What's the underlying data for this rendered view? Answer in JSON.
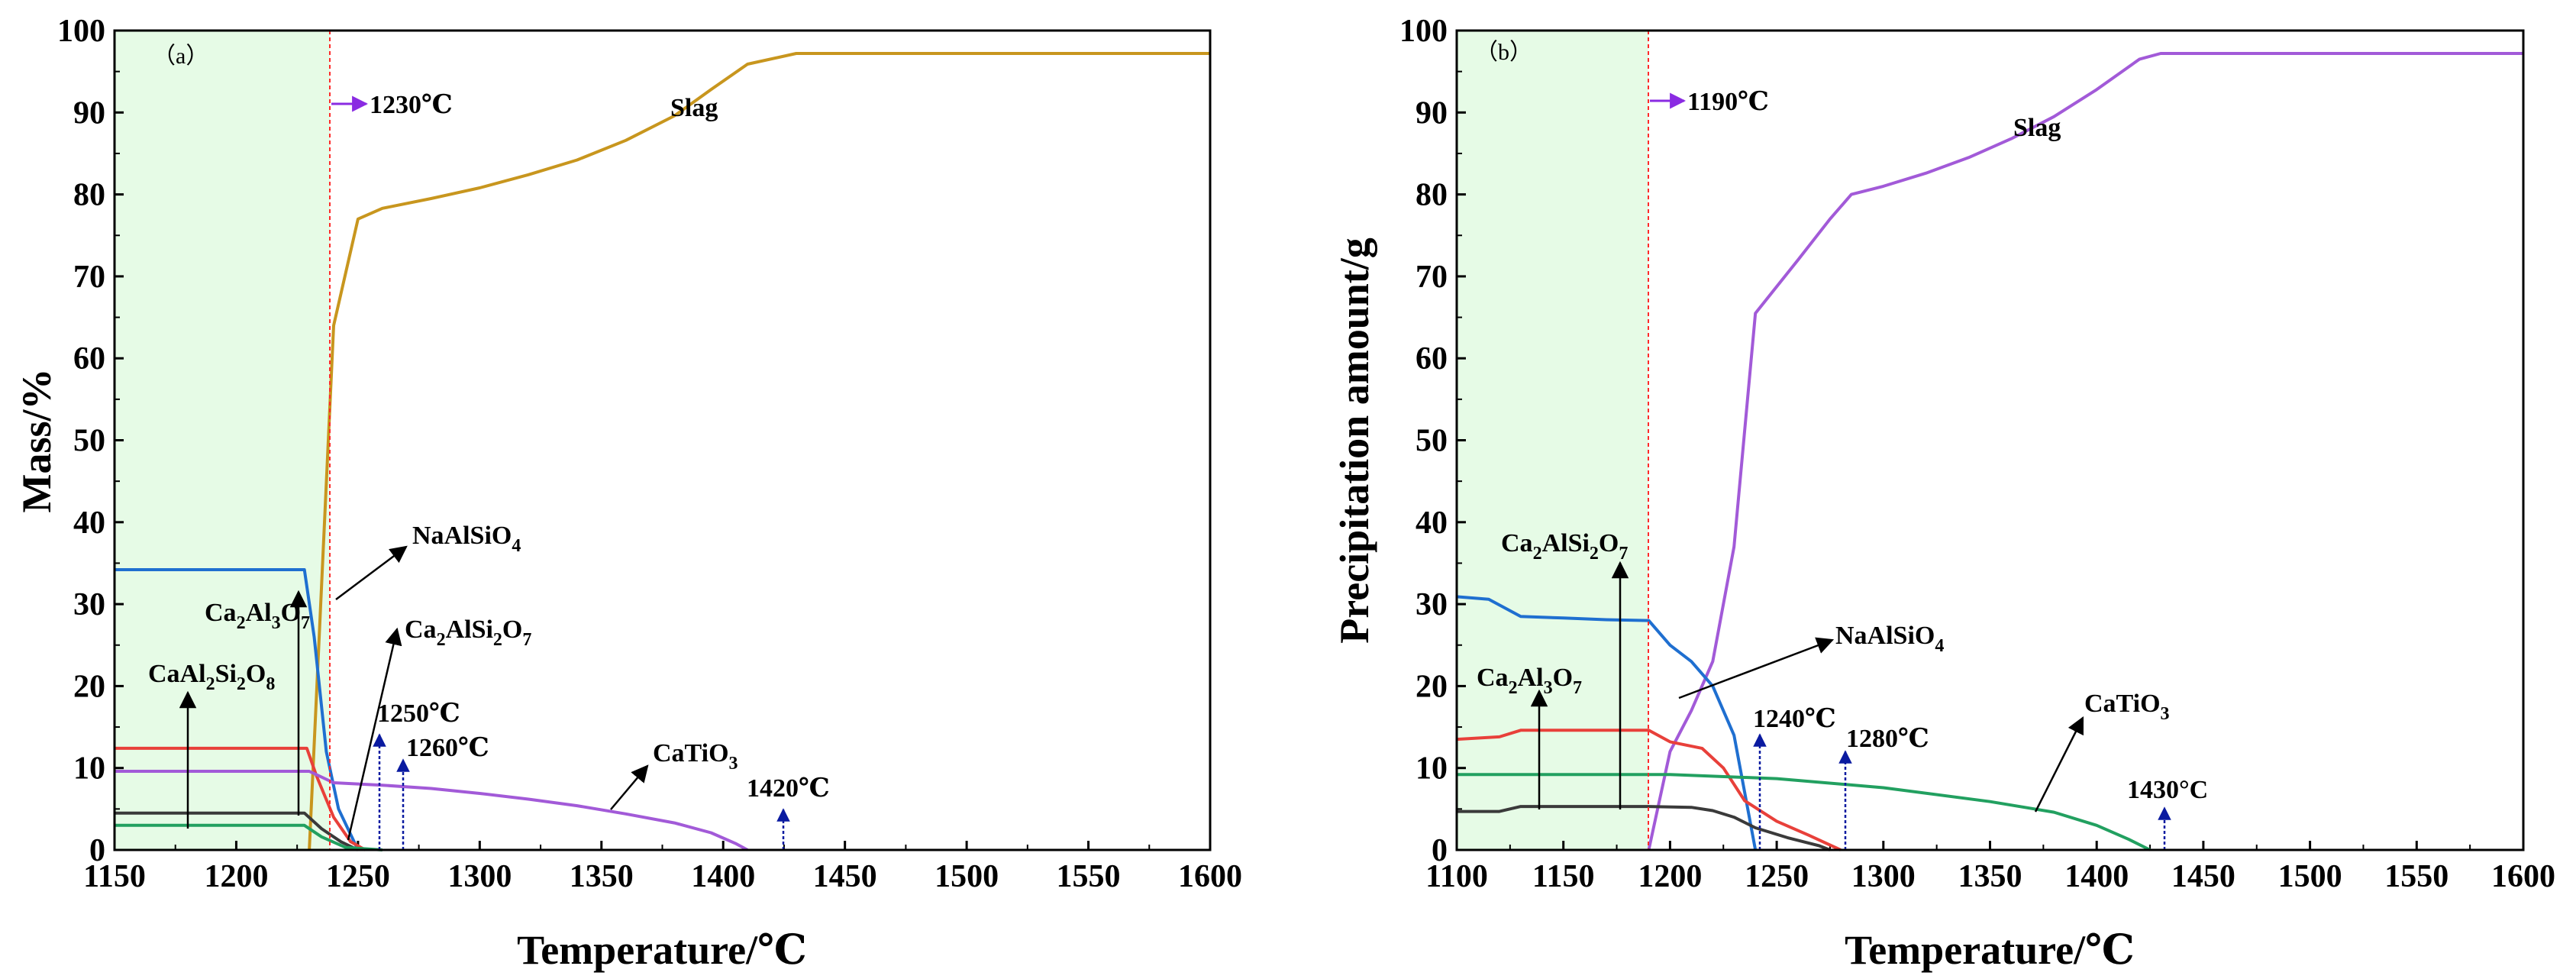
{
  "chart_data": [
    {
      "type": "line",
      "panel_label": "（a）",
      "xlabel": "Temperature/℃",
      "ylabel": "Mass/%",
      "xlim": [
        1150,
        1600
      ],
      "ylim": [
        0,
        100
      ],
      "xticks": [
        "1150",
        "1200",
        "1250",
        "1300",
        "1350",
        "1400",
        "1450",
        "1500",
        "1550",
        "1600"
      ],
      "yticks": [
        "0",
        "10",
        "20",
        "30",
        "40",
        "50",
        "60",
        "70",
        "80",
        "90",
        "100"
      ],
      "shaded_region": [
        1150,
        1230
      ],
      "start_line": {
        "x": 1230,
        "label": "1230℃"
      },
      "series": [
        {
          "name": "Slag",
          "color": "#c8961e",
          "points": [
            [
              1230,
              0
            ],
            [
              1240,
              64
            ],
            [
              1250,
              77
            ],
            [
              1260,
              78.3
            ],
            [
              1280,
              79.5
            ],
            [
              1300,
              80.8
            ],
            [
              1320,
              82.4
            ],
            [
              1340,
              84.2
            ],
            [
              1360,
              86.6
            ],
            [
              1380,
              89.6
            ],
            [
              1395,
              92.8
            ],
            [
              1410,
              95.9
            ],
            [
              1430,
              97.2
            ],
            [
              1600,
              97.2
            ]
          ]
        },
        {
          "name": "NaAlSiO4",
          "color": "#1f6fd0",
          "points": [
            [
              1150,
              34.2
            ],
            [
              1228,
              34.2
            ],
            [
              1232,
              26
            ],
            [
              1237,
              12
            ],
            [
              1242,
              5
            ],
            [
              1250,
              0
            ]
          ]
        },
        {
          "name": "Ca2Al3O7",
          "color": "#e8403a",
          "points": [
            [
              1150,
              12.4
            ],
            [
              1229,
              12.4
            ],
            [
              1233,
              9
            ],
            [
              1240,
              4
            ],
            [
              1247,
              1
            ],
            [
              1253,
              0
            ]
          ]
        },
        {
          "name": "CaAl2Si2O8",
          "color": "#3a3a3a",
          "points": [
            [
              1150,
              4.5
            ],
            [
              1228,
              4.5
            ],
            [
              1235,
              2.6
            ],
            [
              1243,
              1
            ],
            [
              1250,
              0
            ]
          ]
        },
        {
          "name": "Ca2AlSi2O7",
          "color": "#22a060",
          "points": [
            [
              1150,
              3
            ],
            [
              1228,
              3
            ],
            [
              1235,
              1.6
            ],
            [
              1245,
              0.3
            ],
            [
              1260,
              0
            ]
          ]
        },
        {
          "name": "CaTiO3",
          "color": "#a25ad8",
          "points": [
            [
              1150,
              9.6
            ],
            [
              1230,
              9.6
            ],
            [
              1240,
              8.2
            ],
            [
              1260,
              7.9
            ],
            [
              1280,
              7.5
            ],
            [
              1300,
              6.9
            ],
            [
              1320,
              6.2
            ],
            [
              1340,
              5.4
            ],
            [
              1360,
              4.4
            ],
            [
              1380,
              3.3
            ],
            [
              1395,
              2.1
            ],
            [
              1405,
              0.8
            ],
            [
              1410,
              0
            ]
          ]
        }
      ],
      "annotations": [
        {
          "text": "Slag",
          "x": 1374,
          "y": 90
        },
        {
          "text": "NaAlSiO",
          "sub": "4",
          "x": 1256,
          "y": 38,
          "arrow_from": [
            1231,
            31
          ],
          "arrow_to": [
            1254,
            37.5
          ]
        },
        {
          "text": "Ca2Al3O7",
          "x": 1183,
          "y": 28,
          "arrow_from": [
            1170,
            4
          ],
          "arrow_to": [
            1170,
            19
          ]
        },
        {
          "text": "CaAl2Si2O8",
          "x": 1150,
          "y": 19,
          "arrow_from": [
            1171,
            3
          ],
          "arrow_to": [
            1171,
            19
          ]
        },
        {
          "text": "Ca2AlSi2O7",
          "x": 1262,
          "y": 26,
          "arrow_from": [
            1235,
            3
          ],
          "arrow_to": [
            1260,
            26
          ]
        },
        {
          "text": "CaTiO3",
          "x": 1370,
          "y": 11,
          "arrow_from": [
            1368,
            5
          ],
          "arrow_to": [
            1393,
            10
          ]
        }
      ],
      "vertical_marks": [
        {
          "x": 1250,
          "label": "1250℃"
        },
        {
          "x": 1260,
          "label": "1260℃"
        },
        {
          "x": 1420,
          "label": "1420℃"
        }
      ]
    },
    {
      "type": "line",
      "panel_label": "（b）",
      "xlabel": "Temperature/℃",
      "ylabel": "Precipitation amount/g",
      "xlim": [
        1100,
        1600
      ],
      "ylim": [
        0,
        100
      ],
      "xticks": [
        "1100",
        "1150",
        "1200",
        "1250",
        "1300",
        "1350",
        "1400",
        "1450",
        "1500",
        "1550",
        "1600"
      ],
      "yticks": [
        "0",
        "10",
        "20",
        "30",
        "40",
        "50",
        "60",
        "70",
        "80",
        "90",
        "100"
      ],
      "shaded_region": [
        1100,
        1190
      ],
      "start_line": {
        "x": 1190,
        "label": "1190℃"
      },
      "series": [
        {
          "name": "Slag",
          "color": "#a25ad8",
          "points": [
            [
              1190,
              0
            ],
            [
              1200,
              12
            ],
            [
              1210,
              17
            ],
            [
              1220,
              23
            ],
            [
              1230,
              37
            ],
            [
              1240,
              65.5
            ],
            [
              1260,
              72
            ],
            [
              1275,
              77
            ],
            [
              1285,
              80
            ],
            [
              1300,
              81
            ],
            [
              1320,
              82.6
            ],
            [
              1340,
              84.5
            ],
            [
              1360,
              86.8
            ],
            [
              1380,
              89.5
            ],
            [
              1400,
              92.8
            ],
            [
              1420,
              96.5
            ],
            [
              1430,
              97.2
            ],
            [
              1600,
              97.2
            ]
          ]
        },
        {
          "name": "NaAlSiO4",
          "color": "#1f6fd0",
          "points": [
            [
              1100,
              30.9
            ],
            [
              1115,
              30.6
            ],
            [
              1130,
              28.5
            ],
            [
              1150,
              28.3
            ],
            [
              1170,
              28.1
            ],
            [
              1190,
              28
            ],
            [
              1200,
              25
            ],
            [
              1210,
              23
            ],
            [
              1220,
              20
            ],
            [
              1230,
              14
            ],
            [
              1235,
              7
            ],
            [
              1240,
              0
            ]
          ]
        },
        {
          "name": "Ca2Al3O7",
          "color": "#e8403a",
          "points": [
            [
              1100,
              13.5
            ],
            [
              1120,
              13.8
            ],
            [
              1130,
              14.6
            ],
            [
              1150,
              14.6
            ],
            [
              1190,
              14.6
            ],
            [
              1200,
              13.2
            ],
            [
              1215,
              12.4
            ],
            [
              1225,
              10
            ],
            [
              1235,
              6
            ],
            [
              1250,
              3.5
            ],
            [
              1265,
              1.8
            ],
            [
              1280,
              0
            ]
          ]
        },
        {
          "name": "Ca2AlSi2O7",
          "color": "#3a3a3a",
          "points": [
            [
              1100,
              4.7
            ],
            [
              1120,
              4.7
            ],
            [
              1130,
              5.3
            ],
            [
              1150,
              5.3
            ],
            [
              1190,
              5.3
            ],
            [
              1210,
              5.2
            ],
            [
              1220,
              4.8
            ],
            [
              1230,
              4
            ],
            [
              1240,
              2.7
            ],
            [
              1255,
              1.5
            ],
            [
              1270,
              0.5
            ],
            [
              1275,
              0
            ]
          ]
        },
        {
          "name": "CaTiO3",
          "color": "#22a060",
          "points": [
            [
              1100,
              9.2
            ],
            [
              1200,
              9.2
            ],
            [
              1250,
              8.7
            ],
            [
              1300,
              7.6
            ],
            [
              1350,
              5.9
            ],
            [
              1380,
              4.6
            ],
            [
              1400,
              3
            ],
            [
              1415,
              1.3
            ],
            [
              1425,
              0
            ]
          ]
        }
      ],
      "annotations": [
        {
          "text": "Slag",
          "x": 1358,
          "y": 87
        },
        {
          "text": "Ca2AlSi2O7",
          "x": 1120,
          "y": 37
        },
        {
          "text": "Ca2Al3O7",
          "x": 1109,
          "y": 20
        },
        {
          "text": "NaAlSiO4",
          "x": 1286,
          "y": 25
        },
        {
          "text": "CaTiO3",
          "x": 1376,
          "y": 17
        }
      ],
      "vertical_marks": [
        {
          "x": 1240,
          "label": "1240℃"
        },
        {
          "x": 1280,
          "label": "1280℃"
        },
        {
          "x": 1430,
          "label": "1430°C"
        }
      ]
    }
  ]
}
